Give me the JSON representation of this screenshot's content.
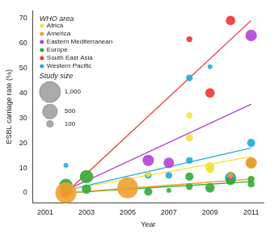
{
  "chart_data": {
    "type": "bubble",
    "x_label": "Year",
    "y_label": "ESBL carriage rate (%)",
    "legend": "upper left",
    "legend_title": "WHO area",
    "grid": false,
    "xlim": [
      2000.4,
      2011.6
    ],
    "xticks": [
      2001,
      2003,
      2005,
      2007,
      2009,
      2011
    ],
    "ylim": [
      -4,
      73
    ],
    "yticks": [
      0,
      10,
      20,
      30,
      40,
      50,
      60,
      70
    ],
    "trend_x": [
      2002,
      2011
    ],
    "series": [
      {
        "name": "Africa",
        "color": "#f2e23a",
        "x": [
          2008,
          2008,
          2009,
          2009,
          2006
        ],
        "values": [
          31,
          22,
          10.5,
          9.5,
          7.5
        ],
        "size": [
          80,
          120,
          200,
          150,
          60
        ],
        "trend": [
          1,
          14.5
        ]
      },
      {
        "name": "America",
        "color": "#f0a030",
        "x": [
          2002,
          2005,
          2011,
          2010
        ],
        "values": [
          0,
          2,
          12,
          7
        ],
        "size": [
          1000,
          1000,
          300,
          80
        ],
        "trend": [
          0,
          5.5
        ]
      },
      {
        "name": "Eastern Mediterranean",
        "color": "#b044d4",
        "x": [
          2006,
          2007,
          2011,
          2010
        ],
        "values": [
          13,
          12,
          63,
          6.5
        ],
        "size": [
          300,
          250,
          300,
          60
        ],
        "trend": [
          1,
          35.5
        ]
      },
      {
        "name": "Europe",
        "color": "#33aa33",
        "x": [
          2002,
          2003,
          2003,
          2006,
          2007,
          2008,
          2008,
          2009,
          2010,
          2010,
          2011,
          2011,
          2011
        ],
        "values": [
          3,
          6.5,
          1.5,
          0.5,
          1,
          6.5,
          2.5,
          2,
          7,
          5,
          3.5,
          5.5,
          12
        ],
        "size": [
          400,
          400,
          200,
          150,
          50,
          150,
          100,
          200,
          100,
          200,
          100,
          100,
          200
        ],
        "trend": [
          0,
          4.5
        ]
      },
      {
        "name": "South East Asia",
        "color": "#ee3333",
        "x": [
          2002,
          2008,
          2009,
          2010
        ],
        "values": [
          0.5,
          61.5,
          40,
          69
        ],
        "size": [
          300,
          80,
          200,
          200
        ],
        "trend": [
          0,
          69
        ]
      },
      {
        "name": "Western Pacific",
        "color": "#22aadd",
        "x": [
          2002,
          2006,
          2007,
          2008,
          2008,
          2009,
          2011,
          2010,
          2010
        ],
        "values": [
          11,
          7,
          7,
          46,
          13,
          50.5,
          20,
          6,
          5
        ],
        "size": [
          50,
          100,
          100,
          100,
          100,
          50,
          150,
          300,
          100
        ],
        "trend": [
          1,
          18
        ]
      }
    ],
    "size_legend": {
      "title": "Study size",
      "values": [
        {
          "value": 1000,
          "label": "1,000"
        },
        {
          "value": 500,
          "label": "500"
        },
        {
          "value": 100,
          "label": "100"
        }
      ]
    }
  }
}
